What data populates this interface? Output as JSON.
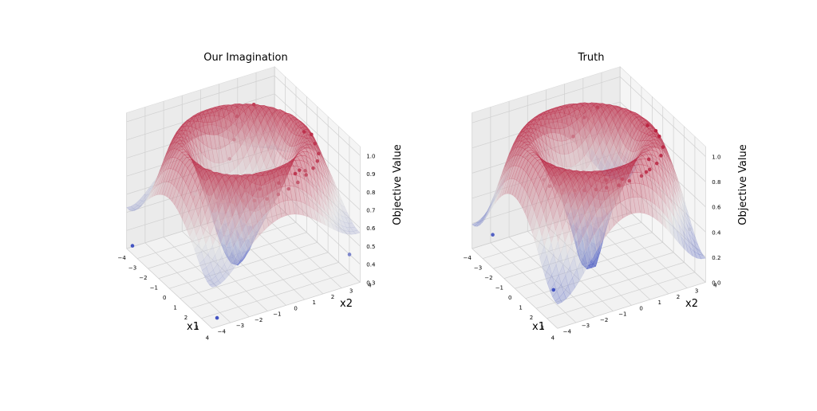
{
  "chart_data": [
    {
      "type": "surface3d",
      "title": "Our Imagination",
      "xlabel": "x1",
      "ylabel": "x2",
      "zlabel": "Objective Value",
      "xlim": [
        -4,
        4
      ],
      "ylim": [
        -4,
        4
      ],
      "zlim": [
        0.3,
        1.05
      ],
      "x_ticks": [
        -4,
        -3,
        -2,
        -1,
        0,
        1,
        2,
        3,
        4
      ],
      "y_ticks": [
        -4,
        -3,
        -2,
        -1,
        0,
        1,
        2,
        3,
        4
      ],
      "z_ticks": [
        0.3,
        0.4,
        0.5,
        0.6,
        0.7,
        0.8,
        0.9,
        1.0
      ],
      "z_tick_labels": [
        "0.3",
        "0.4",
        "0.5",
        "0.6",
        "0.7",
        "0.8",
        "0.9",
        "1.0"
      ],
      "colormap": [
        "#3b4cc0",
        "#dddddd",
        "#b40426"
      ],
      "grid": true,
      "points": [
        {
          "x": -3.8,
          "y": -3.8,
          "z": 0.32
        },
        {
          "x": 3.6,
          "y": -3.5,
          "z": 0.32
        },
        {
          "x": 3.7,
          "y": 3.6,
          "z": 0.45
        },
        {
          "x": -3.2,
          "y": 1.5,
          "z": 0.9
        },
        {
          "x": -3.0,
          "y": 2.3,
          "z": 0.95
        },
        {
          "x": -2.6,
          "y": 1.0,
          "z": 0.82
        },
        {
          "x": -1.8,
          "y": 0.3,
          "z": 0.78
        },
        {
          "x": 0.5,
          "y": 3.0,
          "z": 0.97
        },
        {
          "x": 1.0,
          "y": 3.1,
          "z": 0.98
        },
        {
          "x": 1.5,
          "y": 3.0,
          "z": 0.96
        },
        {
          "x": 2.2,
          "y": 2.8,
          "z": 0.95
        },
        {
          "x": 2.6,
          "y": 2.5,
          "z": 0.94
        },
        {
          "x": 2.9,
          "y": 2.1,
          "z": 0.93
        },
        {
          "x": 3.1,
          "y": 1.6,
          "z": 0.92
        },
        {
          "x": 3.2,
          "y": 1.1,
          "z": 0.9
        },
        {
          "x": 3.2,
          "y": 0.6,
          "z": 0.88
        },
        {
          "x": 3.1,
          "y": 0.1,
          "z": 0.86
        },
        {
          "x": 2.9,
          "y": -0.4,
          "z": 0.84
        },
        {
          "x": 2.6,
          "y": -0.9,
          "z": 0.83
        },
        {
          "x": 2.2,
          "y": -1.3,
          "z": 0.82
        },
        {
          "x": 1.8,
          "y": -1.6,
          "z": 0.8
        },
        {
          "x": 1.4,
          "y": -1.9,
          "z": 0.79
        },
        {
          "x": 1.0,
          "y": -2.1,
          "z": 0.78
        },
        {
          "x": 3.0,
          "y": 1.3,
          "z": 0.95
        },
        {
          "x": 3.3,
          "y": 0.9,
          "z": 0.96
        },
        {
          "x": 2.8,
          "y": 0.3,
          "z": 0.9
        },
        {
          "x": 2.4,
          "y": -0.5,
          "z": 0.87
        },
        {
          "x": 1.9,
          "y": -1.0,
          "z": 0.85
        },
        {
          "x": 2.5,
          "y": 1.9,
          "z": 0.9
        },
        {
          "x": 0.2,
          "y": -2.4,
          "z": 0.76
        },
        {
          "x": -0.5,
          "y": -2.3,
          "z": 0.74
        }
      ]
    },
    {
      "type": "surface3d",
      "title": "Truth",
      "xlabel": "x1",
      "ylabel": "x2",
      "zlabel": "Objective Value",
      "xlim": [
        -4,
        4
      ],
      "ylim": [
        -4,
        4
      ],
      "zlim": [
        0.0,
        1.08
      ],
      "x_ticks": [
        -4,
        -3,
        -2,
        -1,
        0,
        1,
        2,
        3,
        4
      ],
      "y_ticks": [
        -4,
        -3,
        -2,
        -1,
        0,
        1,
        2,
        3,
        4
      ],
      "z_ticks": [
        0.0,
        0.2,
        0.4,
        0.6,
        0.8,
        1.0
      ],
      "z_tick_labels": [
        "0.0",
        "0.2",
        "0.4",
        "0.6",
        "0.8",
        "1.0"
      ],
      "colormap": [
        "#3b4cc0",
        "#dddddd",
        "#b40426"
      ],
      "grid": true,
      "points": [
        {
          "x": -3.8,
          "y": -3.0,
          "z": 0.08
        },
        {
          "x": 3.9,
          "y": 3.2,
          "z": 0.45
        },
        {
          "x": 1.2,
          "y": -2.6,
          "z": 0.02
        },
        {
          "x": -3.2,
          "y": 1.6,
          "z": 0.85
        },
        {
          "x": -3.0,
          "y": 2.2,
          "z": 0.92
        },
        {
          "x": -2.5,
          "y": 0.6,
          "z": 0.8
        },
        {
          "x": 0.3,
          "y": 3.0,
          "z": 1.0
        },
        {
          "x": 0.9,
          "y": 3.1,
          "z": 1.0
        },
        {
          "x": 1.4,
          "y": 3.0,
          "z": 1.0
        },
        {
          "x": 2.1,
          "y": 2.8,
          "z": 0.98
        },
        {
          "x": 2.6,
          "y": 2.4,
          "z": 0.97
        },
        {
          "x": 2.9,
          "y": 2.0,
          "z": 0.95
        },
        {
          "x": 3.1,
          "y": 1.5,
          "z": 0.94
        },
        {
          "x": 3.2,
          "y": 1.0,
          "z": 0.92
        },
        {
          "x": 3.1,
          "y": 0.4,
          "z": 0.9
        },
        {
          "x": 3.0,
          "y": -0.1,
          "z": 0.88
        },
        {
          "x": 2.7,
          "y": -0.6,
          "z": 0.86
        },
        {
          "x": 2.4,
          "y": -1.0,
          "z": 0.84
        },
        {
          "x": 2.0,
          "y": -1.4,
          "z": 0.82
        },
        {
          "x": 1.6,
          "y": -1.7,
          "z": 0.8
        },
        {
          "x": 1.1,
          "y": -2.0,
          "z": 0.78
        },
        {
          "x": 3.3,
          "y": 1.2,
          "z": 0.95
        },
        {
          "x": 2.8,
          "y": 0.2,
          "z": 0.9
        },
        {
          "x": 2.3,
          "y": -0.4,
          "z": 0.88
        },
        {
          "x": 2.5,
          "y": 1.8,
          "z": 0.96
        },
        {
          "x": 0.3,
          "y": -2.3,
          "z": 0.76
        },
        {
          "x": -0.4,
          "y": -2.2,
          "z": 0.75
        }
      ]
    }
  ]
}
